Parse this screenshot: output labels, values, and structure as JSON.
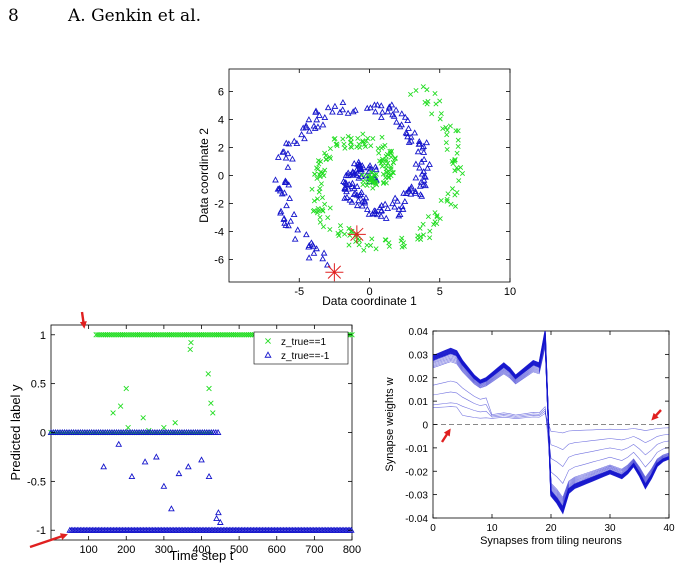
{
  "header": {
    "page_number": "8",
    "running_title": "A. Genkin et al."
  },
  "colors": {
    "green": "#22dd22",
    "blue": "#1515cc",
    "red": "#e02020",
    "dashed": "#888888"
  },
  "chart_data": [
    {
      "type": "scatter",
      "xlabel": "Data coordinate 1",
      "ylabel": "Data coordinate 2",
      "xlim": [
        -10,
        10
      ],
      "ylim": [
        -7.6,
        7.6
      ],
      "xticks": [
        -5,
        0,
        5,
        10
      ],
      "yticks": [
        6,
        4,
        2,
        0,
        -2,
        -4,
        -6
      ],
      "series": [
        {
          "marker": "x",
          "color": "#22dd22",
          "arm": "green-spiral"
        },
        {
          "marker": "triangle",
          "color": "#1515cc",
          "arm": "blue-spiral"
        }
      ],
      "highlights": [
        {
          "marker": "star",
          "color": "#e02020",
          "x": -0.9,
          "y": -4.2
        },
        {
          "marker": "star",
          "color": "#e02020",
          "x": -2.5,
          "y": -6.9
        }
      ]
    },
    {
      "type": "scatter",
      "xlabel": "Time step t",
      "ylabel": "Predicted label y",
      "xlim": [
        0,
        800
      ],
      "ylim": [
        -1.1,
        1.1
      ],
      "xticks": [
        100,
        200,
        300,
        400,
        500,
        600,
        700,
        800
      ],
      "yticks": [
        1,
        0.5,
        0,
        -0.5,
        -1
      ],
      "legend": [
        "z_true==1",
        "z_true==-1"
      ],
      "legend_position": "top-right",
      "series": [
        {
          "name": "z_true==1",
          "marker": "x",
          "color": "#22dd22"
        },
        {
          "name": "z_true==-1",
          "marker": "triangle",
          "color": "#1515cc"
        }
      ],
      "arrows": [
        {
          "x": 110,
          "y": 1
        },
        {
          "x": 45,
          "y": -1
        }
      ]
    },
    {
      "type": "line",
      "xlabel": "Synapses from tiling neurons",
      "ylabel": "Synapse weights w",
      "xlim": [
        0,
        40
      ],
      "ylim": [
        -0.04,
        0.04
      ],
      "xticks": [
        0,
        10,
        20,
        30,
        40
      ],
      "yticks": [
        0.04,
        0.03,
        0.02,
        0.01,
        0,
        -0.01,
        -0.02,
        -0.03,
        -0.04
      ],
      "reference_line": 0,
      "mean_weights": [
        0.028,
        0.029,
        0.03,
        0.031,
        0.03,
        0.026,
        0.023,
        0.02,
        0.018,
        0.019,
        0.021,
        0.023,
        0.025,
        0.023,
        0.02,
        0.022,
        0.024,
        0.026,
        0.025,
        0.038,
        -0.029,
        -0.032,
        -0.036,
        -0.028,
        -0.026,
        -0.025,
        -0.024,
        -0.023,
        -0.022,
        -0.021,
        -0.02,
        -0.021,
        -0.022,
        -0.02,
        -0.017,
        -0.021,
        -0.026,
        -0.022,
        -0.017,
        -0.015,
        -0.014
      ],
      "arrows": [
        {
          "x": 3,
          "y": 0
        },
        {
          "x": 37,
          "y": 0
        }
      ]
    }
  ]
}
